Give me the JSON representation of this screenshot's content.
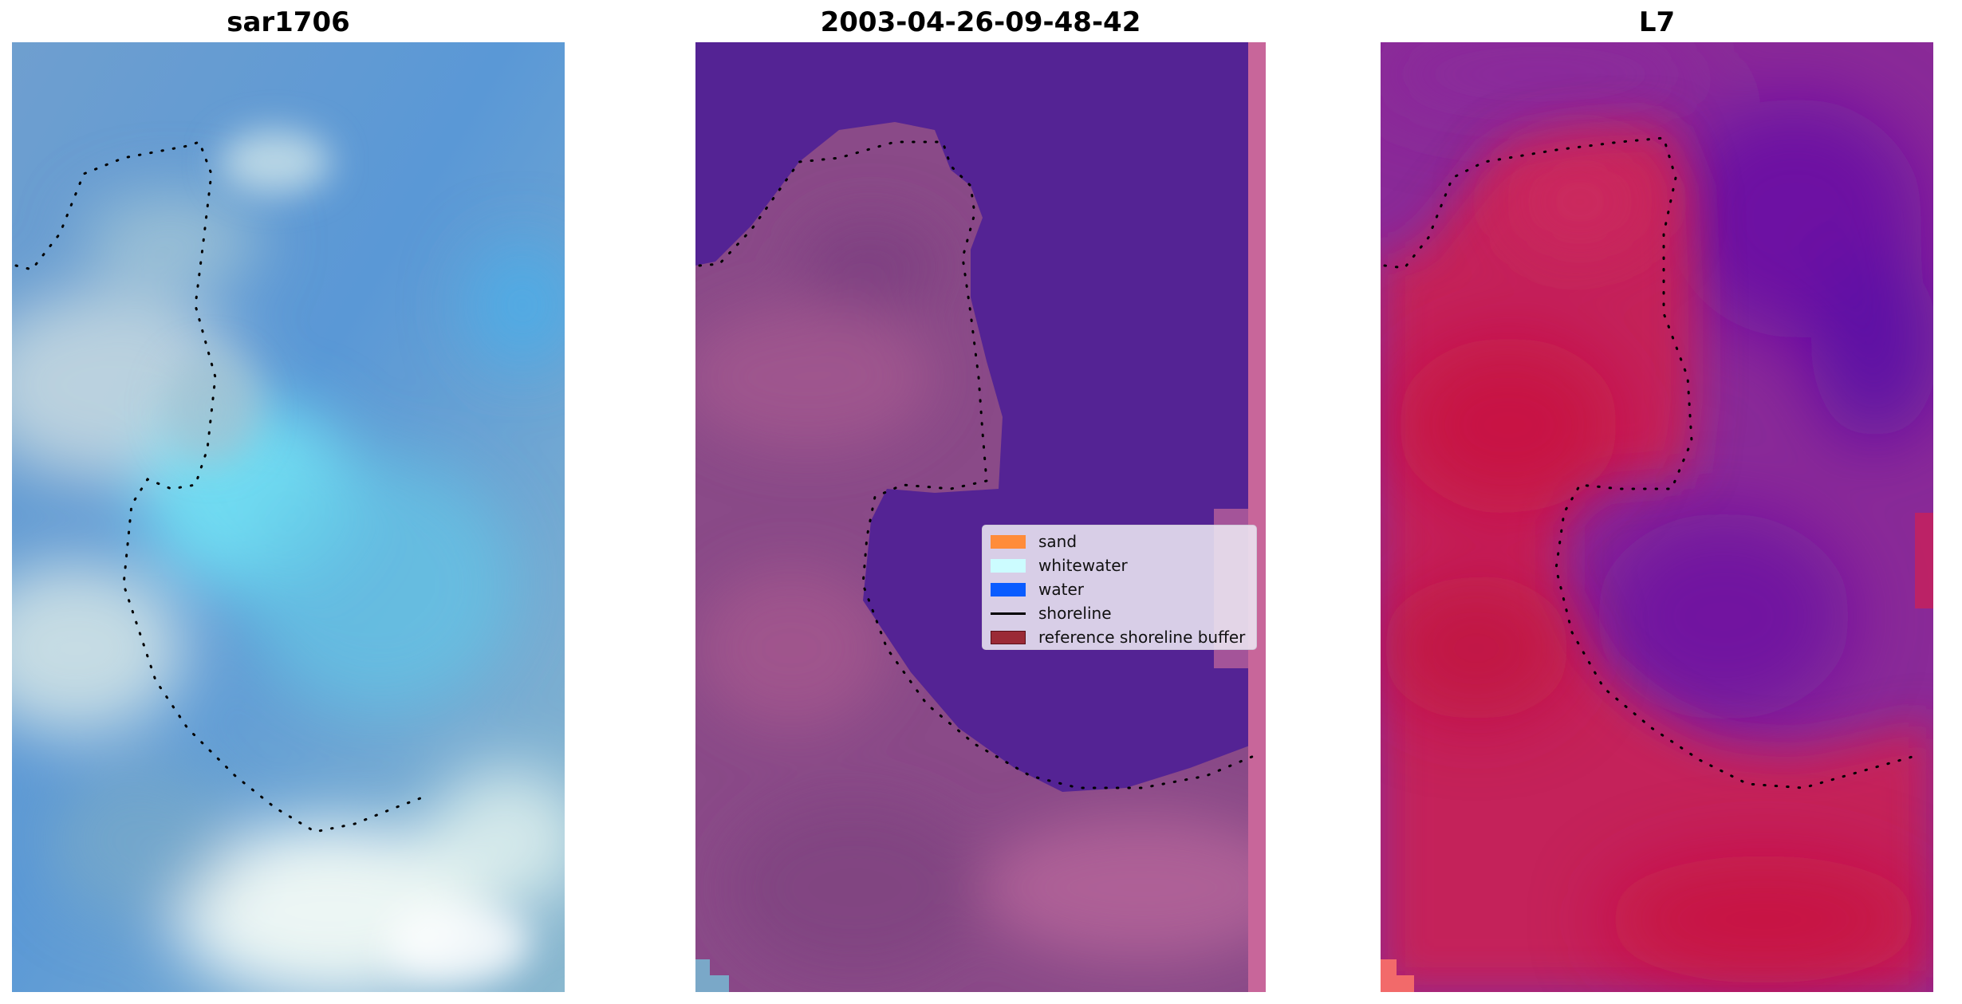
{
  "panels": [
    {
      "title": "sar1706"
    },
    {
      "title": "2003-04-26-09-48-42"
    },
    {
      "title": "L7"
    }
  ],
  "legend": {
    "items": [
      {
        "label": "sand",
        "color": "#ff8c3a",
        "kind": "patch"
      },
      {
        "label": "whitewater",
        "color": "#ccfcff",
        "kind": "patch"
      },
      {
        "label": "water",
        "color": "#0a5cff",
        "kind": "patch"
      },
      {
        "label": "shoreline",
        "color": "#000000",
        "kind": "line"
      },
      {
        "label": "reference shoreline buffer",
        "color": "#9b2a36",
        "kind": "patch"
      }
    ]
  },
  "colors": {
    "rgb_water": "#5aa0d8",
    "rgb_bright_water": "#72e4f6",
    "rgb_foam": "#e6f6f4",
    "classified_water": "#542394",
    "classified_land": "#8a4a88",
    "classified_edge": "#c8669a",
    "index_land": "#c4245a",
    "index_water": "#7a1aa0"
  }
}
